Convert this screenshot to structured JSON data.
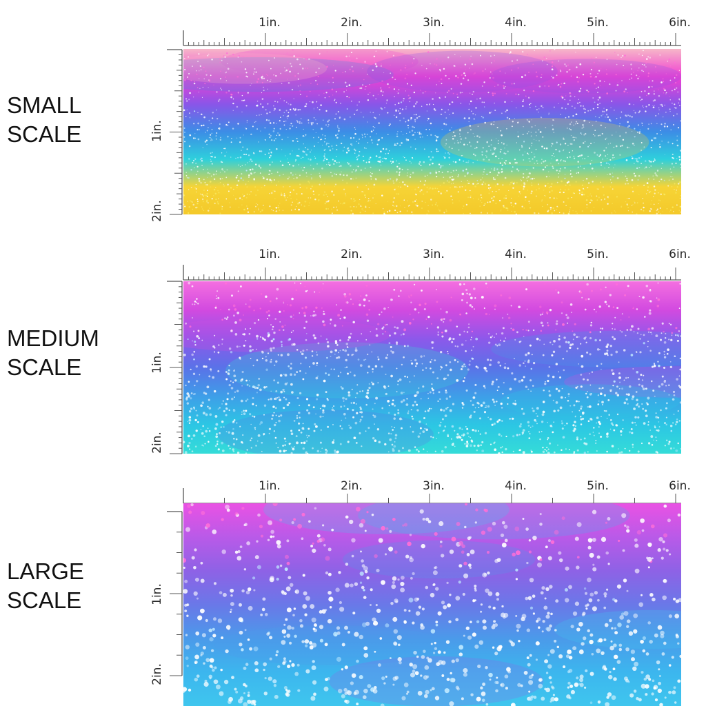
{
  "colors": {
    "pink": "#f24ad6",
    "purple": "#9a57e6",
    "blue": "#3a8fe8",
    "cyan": "#28d4d8",
    "yellow": "#f4d23a",
    "peach": "#f8b8c8",
    "ruler": "#555555"
  },
  "horizontal_ticks": [
    "1in.",
    "2in.",
    "3in.",
    "4in.",
    "5in.",
    "6in."
  ],
  "vertical_ticks": [
    "1in.",
    "2in."
  ],
  "panels": [
    {
      "id": "small",
      "label_line1": "SMALL",
      "label_line2": "SCALE",
      "ruler_detail": "fine",
      "dot_density": 2600,
      "stops": [
        "#f6b6c8",
        "#f03fd2",
        "#8a55e8",
        "#3c8de6",
        "#2ed0dc",
        "#f6d436",
        "#f4c92a"
      ],
      "fabric_name": "rainbow-ombre-glitter-small"
    },
    {
      "id": "medium",
      "label_line1": "MEDIUM",
      "label_line2": "SCALE",
      "ruler_detail": "fine",
      "dot_density": 1700,
      "stops": [
        "#f46fe0",
        "#d24ae0",
        "#8d58ea",
        "#5a72e8",
        "#3e9ee8",
        "#2cc6e4",
        "#34dcd8"
      ],
      "fabric_name": "rainbow-ombre-glitter-medium"
    },
    {
      "id": "large",
      "label_line1": "LARGE",
      "label_line2": "SCALE",
      "ruler_detail": "coarse",
      "dot_density": 900,
      "stops": [
        "#ea52e4",
        "#b95ae8",
        "#8e62e6",
        "#6a78e8",
        "#4b9aea",
        "#3cb6ee",
        "#3fc6ee"
      ],
      "fabric_name": "rainbow-ombre-glitter-large"
    }
  ]
}
